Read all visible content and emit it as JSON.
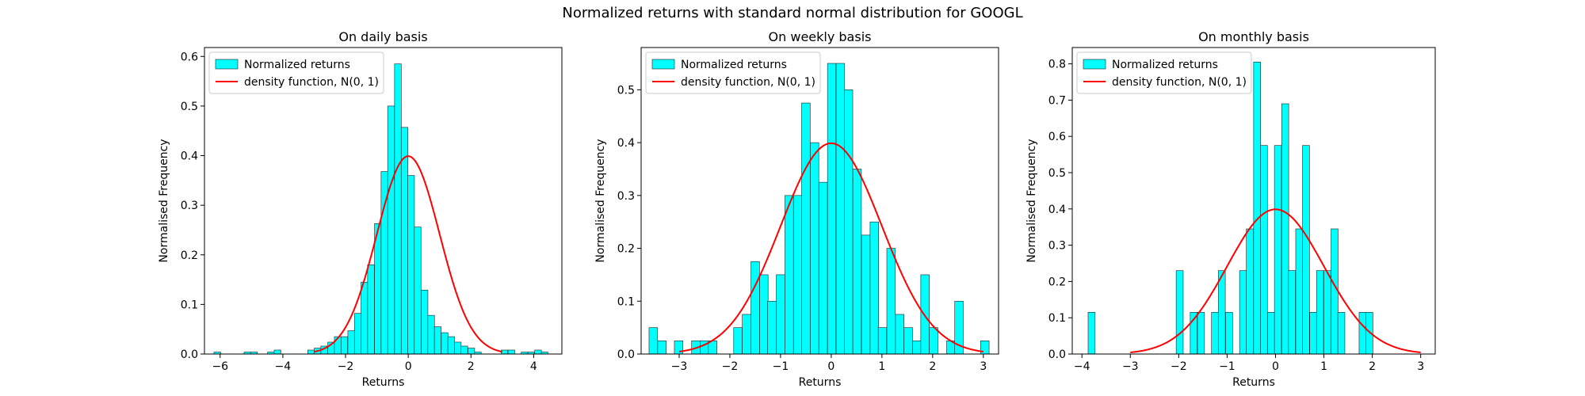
{
  "figure": {
    "title": "Normalized returns with standard normal distribution for GOOGL"
  },
  "colors": {
    "bar_fill": "#00ffff",
    "bar_edge": "#1f1f1f",
    "curve": "#ff0000",
    "legend_edge": "#cccccc"
  },
  "chart_data": [
    {
      "type": "bar",
      "title": "On daily basis",
      "xlabel": "Returns",
      "ylabel": "Normalised Frequency",
      "xlim": [
        -6.5,
        4.9
      ],
      "ylim": [
        0,
        0.618
      ],
      "xticks": [
        -6,
        -4,
        -2,
        0,
        2,
        4
      ],
      "yticks": [
        0.0,
        0.1,
        0.2,
        0.3,
        0.4,
        0.5,
        0.6
      ],
      "ytick_labels": [
        "0.0",
        "0.1",
        "0.2",
        "0.3",
        "0.4",
        "0.5",
        "0.6"
      ],
      "grid": false,
      "legend_position": "upper-left",
      "legend": [
        "Normalized returns",
        "density function, N(0, 1)"
      ],
      "bin_width": 0.213,
      "bin_centers": [
        -6.09,
        -5.13,
        -4.92,
        -4.38,
        -4.17,
        -3.1,
        -2.89,
        -2.68,
        -2.46,
        -2.25,
        -2.04,
        -1.82,
        -1.61,
        -1.4,
        -1.19,
        -0.97,
        -0.76,
        -0.55,
        -0.33,
        -0.12,
        0.09,
        0.3,
        0.52,
        0.73,
        0.94,
        1.16,
        1.37,
        1.58,
        1.79,
        2.01,
        2.22,
        2.43,
        2.65,
        2.86,
        3.07,
        3.29,
        3.5,
        3.71,
        3.92,
        4.14,
        4.35
      ],
      "values": [
        0.004,
        0.004,
        0.004,
        0.004,
        0.008,
        0.008,
        0.012,
        0.016,
        0.024,
        0.035,
        0.035,
        0.047,
        0.082,
        0.145,
        0.18,
        0.263,
        0.368,
        0.5,
        0.585,
        0.457,
        0.36,
        0.256,
        0.129,
        0.078,
        0.055,
        0.043,
        0.035,
        0.024,
        0.016,
        0.012,
        0.004,
        0.0,
        0.0,
        0.0,
        0.008,
        0.008,
        0.0,
        0.004,
        0.004,
        0.008,
        0.004
      ],
      "curve": {
        "name": "density function, N(0, 1)",
        "distribution": "normal",
        "mean": 0,
        "std": 1,
        "x_range": [
          -3,
          3
        ]
      }
    },
    {
      "type": "bar",
      "title": "On weekly basis",
      "xlabel": "Returns",
      "ylabel": "Normalised Frequency",
      "xlim": [
        -3.75,
        3.3
      ],
      "ylim": [
        0,
        0.58
      ],
      "xticks": [
        -3,
        -2,
        -1,
        0,
        1,
        2,
        3
      ],
      "yticks": [
        0.0,
        0.1,
        0.2,
        0.3,
        0.4,
        0.5
      ],
      "ytick_labels": [
        "0.0",
        "0.1",
        "0.2",
        "0.3",
        "0.4",
        "0.5"
      ],
      "grid": false,
      "legend_position": "upper-left",
      "legend": [
        "Normalized returns",
        "density function, N(0, 1)"
      ],
      "bin_width": 0.168,
      "bin_centers": [
        -3.51,
        -3.34,
        -3.01,
        -2.67,
        -2.5,
        -2.34,
        -1.84,
        -1.67,
        -1.5,
        -1.33,
        -1.17,
        -1.0,
        -0.83,
        -0.66,
        -0.5,
        -0.33,
        -0.16,
        0.01,
        0.18,
        0.34,
        0.51,
        0.68,
        0.85,
        1.01,
        1.18,
        1.35,
        1.52,
        1.69,
        1.85,
        2.02,
        2.36,
        2.52,
        3.03
      ],
      "values": [
        0.05,
        0.025,
        0.025,
        0.025,
        0.025,
        0.025,
        0.05,
        0.075,
        0.175,
        0.15,
        0.1,
        0.15,
        0.3,
        0.3,
        0.475,
        0.4,
        0.325,
        0.55,
        0.55,
        0.5,
        0.35,
        0.225,
        0.25,
        0.05,
        0.2,
        0.075,
        0.05,
        0.025,
        0.15,
        0.05,
        0.025,
        0.1,
        0.025
      ],
      "curve": {
        "name": "density function, N(0, 1)",
        "distribution": "normal",
        "mean": 0,
        "std": 1,
        "x_range": [
          -3,
          3
        ]
      }
    },
    {
      "type": "bar",
      "title": "On monthly basis",
      "xlabel": "Returns",
      "ylabel": "Normalised Frequency",
      "xlim": [
        -4.2,
        3.3
      ],
      "ylim": [
        0,
        0.845
      ],
      "xticks": [
        -4,
        -3,
        -2,
        -1,
        0,
        1,
        2,
        3
      ],
      "yticks": [
        0.0,
        0.1,
        0.2,
        0.3,
        0.4,
        0.5,
        0.6,
        0.7,
        0.8
      ],
      "ytick_labels": [
        "0.0",
        "0.1",
        "0.2",
        "0.3",
        "0.4",
        "0.5",
        "0.6",
        "0.7",
        "0.8"
      ],
      "grid": false,
      "legend_position": "upper-left",
      "legend": [
        "Normalized returns",
        "density function, N(0, 1)"
      ],
      "bin_width": 0.145,
      "bin_centers": [
        -3.8,
        -1.98,
        -1.69,
        -1.54,
        -1.25,
        -1.11,
        -0.96,
        -0.67,
        -0.53,
        -0.38,
        -0.24,
        -0.09,
        0.05,
        0.2,
        0.34,
        0.49,
        0.63,
        0.78,
        0.92,
        1.07,
        1.22,
        1.36,
        1.8,
        1.94
      ],
      "values": [
        0.115,
        0.23,
        0.115,
        0.115,
        0.115,
        0.23,
        0.115,
        0.23,
        0.345,
        0.805,
        0.575,
        0.115,
        0.575,
        0.69,
        0.23,
        0.345,
        0.575,
        0.115,
        0.23,
        0.23,
        0.345,
        0.115,
        0.115,
        0.115
      ],
      "curve": {
        "name": "density function, N(0, 1)",
        "distribution": "normal",
        "mean": 0,
        "std": 1,
        "x_range": [
          -3,
          3
        ]
      }
    }
  ]
}
